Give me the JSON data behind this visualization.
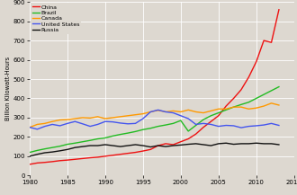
{
  "title": "",
  "ylabel": "Billion Kilowatt-Hours",
  "xlim": [
    1980,
    2015
  ],
  "ylim": [
    0,
    900
  ],
  "yticks": [
    0,
    100,
    200,
    300,
    400,
    500,
    600,
    700,
    800,
    900
  ],
  "xticks": [
    1980,
    1985,
    1990,
    1995,
    2000,
    2005,
    2010,
    2015
  ],
  "background_color": "#ddd8d0",
  "series": {
    "China": {
      "color": "#ee1111",
      "data": {
        "1980": 58,
        "1981": 65,
        "1982": 68,
        "1983": 72,
        "1984": 77,
        "1985": 80,
        "1986": 84,
        "1987": 88,
        "1988": 92,
        "1989": 95,
        "1990": 100,
        "1991": 105,
        "1992": 110,
        "1993": 115,
        "1994": 120,
        "1995": 127,
        "1996": 135,
        "1997": 155,
        "1998": 165,
        "1999": 160,
        "2000": 175,
        "2001": 190,
        "2002": 215,
        "2003": 250,
        "2004": 280,
        "2005": 310,
        "2006": 360,
        "2007": 400,
        "2008": 445,
        "2009": 510,
        "2010": 590,
        "2011": 700,
        "2012": 690,
        "2013": 860
      }
    },
    "Brazil": {
      "color": "#22bb22",
      "data": {
        "1980": 120,
        "1981": 130,
        "1982": 138,
        "1983": 145,
        "1984": 152,
        "1985": 162,
        "1986": 168,
        "1987": 175,
        "1988": 182,
        "1989": 190,
        "1990": 195,
        "1991": 205,
        "1992": 213,
        "1993": 220,
        "1994": 228,
        "1995": 238,
        "1996": 245,
        "1997": 255,
        "1998": 262,
        "1999": 270,
        "2000": 285,
        "2001": 230,
        "2002": 260,
        "2003": 290,
        "2004": 310,
        "2005": 325,
        "2006": 340,
        "2007": 355,
        "2008": 368,
        "2009": 380,
        "2010": 400,
        "2011": 420,
        "2012": 440,
        "2013": 460
      }
    },
    "Canada": {
      "color": "#ff9900",
      "data": {
        "1980": 250,
        "1981": 265,
        "1982": 270,
        "1983": 280,
        "1984": 288,
        "1985": 290,
        "1986": 295,
        "1987": 300,
        "1988": 298,
        "1989": 305,
        "1990": 295,
        "1991": 300,
        "1992": 305,
        "1993": 310,
        "1994": 315,
        "1995": 320,
        "1996": 330,
        "1997": 338,
        "1998": 330,
        "1999": 335,
        "2000": 330,
        "2001": 340,
        "2002": 330,
        "2003": 325,
        "2004": 335,
        "2005": 345,
        "2006": 345,
        "2007": 355,
        "2008": 355,
        "2009": 345,
        "2010": 350,
        "2011": 360,
        "2012": 375,
        "2013": 365
      }
    },
    "United States": {
      "color": "#4455ee",
      "data": {
        "1980": 250,
        "1981": 240,
        "1982": 255,
        "1983": 265,
        "1984": 258,
        "1985": 270,
        "1986": 280,
        "1987": 268,
        "1988": 255,
        "1989": 265,
        "1990": 280,
        "1991": 278,
        "1992": 272,
        "1993": 268,
        "1994": 270,
        "1995": 295,
        "1996": 330,
        "1997": 340,
        "1998": 330,
        "1999": 325,
        "2000": 310,
        "2001": 295,
        "2002": 265,
        "2003": 270,
        "2004": 265,
        "2005": 255,
        "2006": 260,
        "2007": 258,
        "2008": 248,
        "2009": 255,
        "2010": 258,
        "2011": 262,
        "2012": 270,
        "2013": 260
      }
    },
    "Russia": {
      "color": "#111111",
      "data": {
        "1980": 100,
        "1981": 110,
        "1982": 118,
        "1983": 122,
        "1984": 128,
        "1985": 135,
        "1986": 145,
        "1987": 150,
        "1988": 155,
        "1989": 155,
        "1990": 160,
        "1991": 155,
        "1992": 150,
        "1993": 155,
        "1994": 160,
        "1995": 155,
        "1996": 148,
        "1997": 155,
        "1998": 150,
        "1999": 155,
        "2000": 158,
        "2001": 162,
        "2002": 165,
        "2003": 160,
        "2004": 155,
        "2005": 165,
        "2006": 168,
        "2007": 162,
        "2008": 165,
        "2009": 165,
        "2010": 168,
        "2011": 165,
        "2012": 165,
        "2013": 160
      }
    }
  },
  "legend_order": [
    "China",
    "Brazil",
    "Canada",
    "United States",
    "Russia"
  ]
}
